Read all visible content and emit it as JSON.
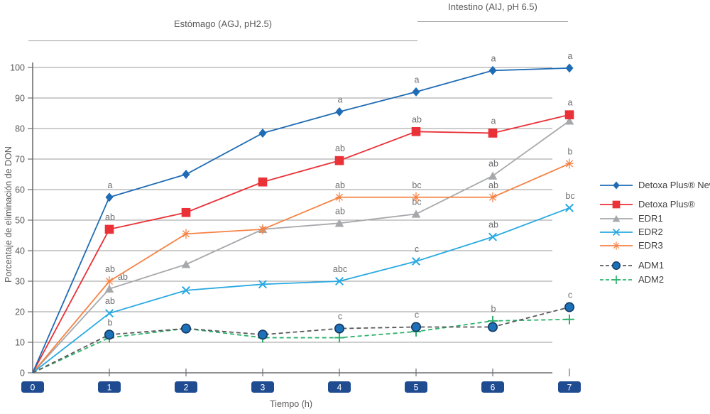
{
  "colors": {
    "tick_box": "#1f4b91",
    "tick_box_text": "#ffffff",
    "grid": "#9b9b9b",
    "axis": "#6d6e71",
    "text": "#58595b",
    "letter": "#6d6e71"
  },
  "chart_data": {
    "type": "line",
    "x": [
      0,
      1,
      2,
      3,
      4,
      5,
      6,
      7
    ],
    "xlabel": "Tiempo (h)",
    "ylabel": "Porcentaje de eliminación de DON",
    "ylim": [
      0,
      100
    ],
    "y_ticks": [
      0,
      10,
      20,
      30,
      40,
      50,
      60,
      70,
      80,
      90,
      100
    ],
    "x_ticks": [
      0,
      1,
      2,
      3,
      4,
      5,
      6,
      7
    ],
    "grid": "horizontal",
    "legend_position": "right",
    "annotations": [
      {
        "label": "Estómago (AGJ, pH2.5)",
        "x_range": [
          0,
          5
        ]
      },
      {
        "label": "Intestino (AIJ, pH 6.5)",
        "x_range": [
          5,
          7
        ]
      }
    ],
    "series": [
      {
        "name": "Detoxa Plus® New",
        "color": "#1f6cb4",
        "marker": "diamond",
        "dashed": false,
        "values": [
          0,
          57.5,
          65,
          78.5,
          85.5,
          92,
          99,
          99.8
        ],
        "letters": [
          "",
          "a",
          "",
          "",
          "a",
          "a",
          "a",
          "a"
        ]
      },
      {
        "name": "Detoxa Plus®",
        "color": "#e93137",
        "marker": "square",
        "dashed": false,
        "values": [
          0,
          47,
          52.5,
          62.5,
          69.5,
          79,
          78.5,
          84.5
        ],
        "letters": [
          "",
          "ab",
          "",
          "",
          "ab",
          "ab",
          "a",
          "a"
        ]
      },
      {
        "name": "EDR1",
        "color": "#a6a8ab",
        "marker": "triangle",
        "dashed": false,
        "values": [
          0,
          27.5,
          35.5,
          47,
          49,
          52,
          64.5,
          82.5
        ],
        "letters": [
          "",
          "ab",
          "",
          "",
          "ab",
          "bc",
          "ab",
          ""
        ],
        "letter_offsets": {
          "1": [
            18,
            0
          ]
        }
      },
      {
        "name": "EDR2",
        "color": "#29a9e1",
        "marker": "x",
        "dashed": false,
        "values": [
          0,
          19.5,
          27,
          29,
          30,
          36.5,
          44.5,
          54
        ],
        "letters": [
          "",
          "ab",
          "",
          "",
          "abc",
          "c",
          "ab",
          "bc"
        ]
      },
      {
        "name": "EDR3",
        "color": "#f58345",
        "marker": "asterisk",
        "dashed": false,
        "values": [
          0,
          30,
          45.5,
          47,
          57.5,
          57.5,
          57.5,
          68.5
        ],
        "letters": [
          "",
          "ab",
          "",
          "",
          "ab",
          "bc",
          "ab",
          "b"
        ]
      },
      {
        "name": "ADM1",
        "color": "#58595b",
        "marker": "circle",
        "marker_fill": "#1d71b8",
        "dashed": true,
        "values": [
          0,
          12.5,
          14.5,
          12.5,
          14.5,
          15,
          15,
          21.5
        ],
        "letters": [
          "",
          "b",
          "",
          "",
          "c",
          "c",
          "",
          "c"
        ]
      },
      {
        "name": "ADM2",
        "color": "#2eb26b",
        "marker": "plus",
        "dashed": true,
        "values": [
          0,
          11.5,
          14.5,
          11.5,
          11.5,
          13.5,
          17,
          17.5
        ],
        "letters": [
          "",
          "",
          "",
          "",
          "",
          "",
          "b",
          ""
        ]
      }
    ]
  }
}
